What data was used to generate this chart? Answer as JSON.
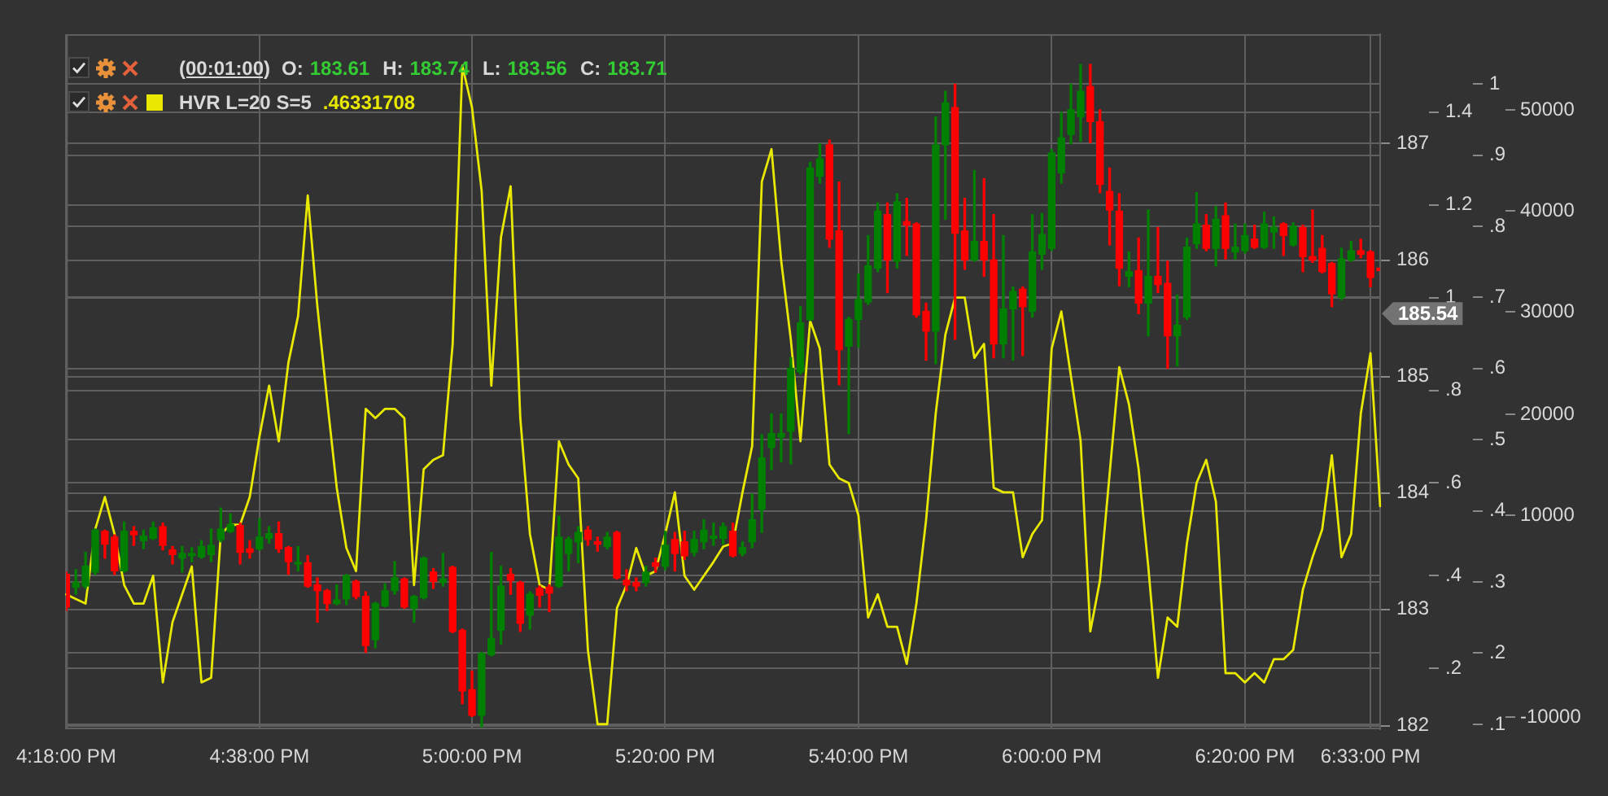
{
  "chart_data": {
    "type": "candlestick",
    "categories": [
      "4:18:00 PM",
      null,
      null,
      null,
      null,
      null,
      null,
      null,
      null,
      null,
      null,
      null,
      null,
      null,
      null,
      null,
      null,
      null,
      null,
      null,
      "4:38:00 PM",
      null,
      null,
      null,
      null,
      null,
      null,
      null,
      null,
      null,
      null,
      null,
      null,
      null,
      null,
      null,
      null,
      null,
      null,
      null,
      null,
      null,
      "5:00:00 PM",
      null,
      null,
      null,
      null,
      null,
      null,
      null,
      null,
      null,
      null,
      null,
      null,
      null,
      null,
      null,
      null,
      null,
      null,
      null,
      "5:20:00 PM",
      null,
      null,
      null,
      null,
      null,
      null,
      null,
      null,
      null,
      null,
      null,
      null,
      null,
      null,
      null,
      null,
      null,
      null,
      null,
      "5:40:00 PM",
      null,
      null,
      null,
      null,
      null,
      null,
      null,
      null,
      null,
      null,
      null,
      null,
      null,
      null,
      null,
      null,
      null,
      null,
      null,
      "6:00:00 PM",
      null,
      null,
      null,
      null,
      null,
      null,
      null,
      null,
      null,
      null,
      null,
      null,
      null,
      null,
      null,
      null,
      null,
      null,
      null,
      "6:20:00 PM",
      null,
      null,
      null,
      null,
      null,
      null,
      null,
      null,
      null,
      null,
      null,
      null,
      "6:33:00 PM",
      null
    ],
    "series": [
      {
        "type": "candlestick",
        "ohlc": [
          [
            183.3,
            183.32,
            182.99,
            183.02
          ],
          [
            183.19,
            183.34,
            183.13,
            183.23
          ],
          [
            183.2,
            183.49,
            183.18,
            183.37
          ],
          [
            183.32,
            183.69,
            183.3,
            183.68
          ],
          [
            183.67,
            183.68,
            183.44,
            183.56
          ],
          [
            183.62,
            183.64,
            183.3,
            183.33
          ],
          [
            183.33,
            183.75,
            183.32,
            183.67
          ],
          [
            183.67,
            183.71,
            183.55,
            183.64
          ],
          [
            183.59,
            183.68,
            183.52,
            183.63
          ],
          [
            183.61,
            183.75,
            183.6,
            183.7
          ],
          [
            183.71,
            183.74,
            183.51,
            183.55
          ],
          [
            183.51,
            183.54,
            183.39,
            183.47
          ],
          [
            183.44,
            183.54,
            183.32,
            183.48
          ],
          [
            183.46,
            183.53,
            183.41,
            183.48
          ],
          [
            183.45,
            183.59,
            183.44,
            183.54
          ],
          [
            183.47,
            183.69,
            183.41,
            183.55
          ],
          [
            183.6,
            183.87,
            183.58,
            183.69
          ],
          [
            183.67,
            183.82,
            183.66,
            183.73
          ],
          [
            183.72,
            183.74,
            183.39,
            183.49
          ],
          [
            183.52,
            183.59,
            183.44,
            183.49
          ],
          [
            183.52,
            183.78,
            183.51,
            183.62
          ],
          [
            183.61,
            183.71,
            183.57,
            183.65
          ],
          [
            183.65,
            183.75,
            183.49,
            183.52
          ],
          [
            183.53,
            183.54,
            183.3,
            183.41
          ],
          [
            183.39,
            183.54,
            183.33,
            183.4
          ],
          [
            183.4,
            183.46,
            183.19,
            183.2
          ],
          [
            183.21,
            183.27,
            182.89,
            183.16
          ],
          [
            183.16,
            183.17,
            182.99,
            183.05
          ],
          [
            183.05,
            183.21,
            183.04,
            183.08
          ],
          [
            183.09,
            183.3,
            183.04,
            183.29
          ],
          [
            183.24,
            183.25,
            183.09,
            183.11
          ],
          [
            183.11,
            183.15,
            182.63,
            182.69
          ],
          [
            182.74,
            183.06,
            182.67,
            183.05
          ],
          [
            183.03,
            183.22,
            183.02,
            183.16
          ],
          [
            183.16,
            183.41,
            183.13,
            183.27
          ],
          [
            183.26,
            183.27,
            183.01,
            183.02
          ],
          [
            183.01,
            183.12,
            182.89,
            183.11
          ],
          [
            183.1,
            183.45,
            183.09,
            183.44
          ],
          [
            183.32,
            183.35,
            183.18,
            183.24
          ],
          [
            183.23,
            183.48,
            183.2,
            183.26
          ],
          [
            183.36,
            183.37,
            182.8,
            182.81
          ],
          [
            182.82,
            182.83,
            182.19,
            182.3
          ],
          [
            182.31,
            182.47,
            182.08,
            182.09
          ],
          [
            182.09,
            182.63,
            181.99,
            182.62
          ],
          [
            182.61,
            183.49,
            182.6,
            182.75
          ],
          [
            182.82,
            183.37,
            182.7,
            183.2
          ],
          [
            183.3,
            183.35,
            183.13,
            183.25
          ],
          [
            183.23,
            183.24,
            182.81,
            182.88
          ],
          [
            182.95,
            183.15,
            182.83,
            183.13
          ],
          [
            183.18,
            183.2,
            183.02,
            183.12
          ],
          [
            183.19,
            183.21,
            182.98,
            183.14
          ],
          [
            183.2,
            183.8,
            183.19,
            183.62
          ],
          [
            183.48,
            183.62,
            183.33,
            183.6
          ],
          [
            183.58,
            183.71,
            183.4,
            183.66
          ],
          [
            183.68,
            183.71,
            183.55,
            183.6
          ],
          [
            183.58,
            183.62,
            183.5,
            183.56
          ],
          [
            183.54,
            183.66,
            183.52,
            183.62
          ],
          [
            183.66,
            183.67,
            183.26,
            183.27
          ],
          [
            183.25,
            183.34,
            183.16,
            183.21
          ],
          [
            183.23,
            183.27,
            183.16,
            183.2
          ],
          [
            183.23,
            183.37,
            183.2,
            183.32
          ],
          [
            183.4,
            183.44,
            183.32,
            183.37
          ],
          [
            183.37,
            183.67,
            183.34,
            183.55
          ],
          [
            183.6,
            183.66,
            183.33,
            183.48
          ],
          [
            183.58,
            183.67,
            183.43,
            183.46
          ],
          [
            183.49,
            183.67,
            183.46,
            183.6
          ],
          [
            183.58,
            183.77,
            183.52,
            183.68
          ],
          [
            183.61,
            183.74,
            183.55,
            183.63
          ],
          [
            183.61,
            183.74,
            183.56,
            183.71
          ],
          [
            183.67,
            183.74,
            183.45,
            183.46
          ],
          [
            183.48,
            183.58,
            183.46,
            183.53
          ],
          [
            183.58,
            183.99,
            183.53,
            183.77
          ],
          [
            183.86,
            184.5,
            183.66,
            184.3
          ],
          [
            184.39,
            184.68,
            184.2,
            184.51
          ],
          [
            184.48,
            184.68,
            184.27,
            184.51
          ],
          [
            184.53,
            185.16,
            184.25,
            185.07
          ],
          [
            185.04,
            185.6,
            185.02,
            185.46
          ],
          [
            185.49,
            186.84,
            185.48,
            186.79
          ],
          [
            186.72,
            187.0,
            186.66,
            186.87
          ],
          [
            186.99,
            187.03,
            186.11,
            186.18
          ],
          [
            186.25,
            186.67,
            184.93,
            185.23
          ],
          [
            185.26,
            185.51,
            184.51,
            185.49
          ],
          [
            185.49,
            185.88,
            185.25,
            185.66
          ],
          [
            185.64,
            186.21,
            185.62,
            185.95
          ],
          [
            185.93,
            186.49,
            185.9,
            186.42
          ],
          [
            186.39,
            186.49,
            185.72,
            186.0
          ],
          [
            185.99,
            186.57,
            185.93,
            186.5
          ],
          [
            186.33,
            186.53,
            186.04,
            186.3
          ],
          [
            186.31,
            186.32,
            185.51,
            185.53
          ],
          [
            185.56,
            185.63,
            185.14,
            185.39
          ],
          [
            185.39,
            187.23,
            185.11,
            186.99
          ],
          [
            186.99,
            187.45,
            186.35,
            187.35
          ],
          [
            187.31,
            187.51,
            185.32,
            186.23
          ],
          [
            186.25,
            186.53,
            185.92,
            186.0
          ],
          [
            186.0,
            186.77,
            185.99,
            186.16
          ],
          [
            186.16,
            186.7,
            185.86,
            186.0
          ],
          [
            186.0,
            186.39,
            185.16,
            185.28
          ],
          [
            185.28,
            186.21,
            185.16,
            185.58
          ],
          [
            185.58,
            185.77,
            185.14,
            185.73
          ],
          [
            185.75,
            185.77,
            185.18,
            185.6
          ],
          [
            185.56,
            186.39,
            185.51,
            186.07
          ],
          [
            186.05,
            186.4,
            185.92,
            186.22
          ],
          [
            186.1,
            186.95,
            186.08,
            186.92
          ],
          [
            186.75,
            187.27,
            186.66,
            187.05
          ],
          [
            187.08,
            187.51,
            187.0,
            187.29
          ],
          [
            187.23,
            187.68,
            187.02,
            187.45
          ],
          [
            187.49,
            187.68,
            187.01,
            187.19
          ],
          [
            187.19,
            187.29,
            186.58,
            186.65
          ],
          [
            186.59,
            186.79,
            186.13,
            186.43
          ],
          [
            186.42,
            186.57,
            185.78,
            185.93
          ],
          [
            185.86,
            186.07,
            185.77,
            185.9
          ],
          [
            185.91,
            186.19,
            185.54,
            185.63
          ],
          [
            185.63,
            186.43,
            185.35,
            185.86
          ],
          [
            185.86,
            186.28,
            185.72,
            185.79
          ],
          [
            185.8,
            185.99,
            185.07,
            185.35
          ],
          [
            185.35,
            185.7,
            185.09,
            185.44
          ],
          [
            185.51,
            186.19,
            185.49,
            186.11
          ],
          [
            186.14,
            186.58,
            186.1,
            186.31
          ],
          [
            186.3,
            186.39,
            186.08,
            186.1
          ],
          [
            186.1,
            186.46,
            185.95,
            186.35
          ],
          [
            186.38,
            186.49,
            186.01,
            186.1
          ],
          [
            186.07,
            186.31,
            186.01,
            186.11
          ],
          [
            186.08,
            186.31,
            186.06,
            186.21
          ],
          [
            186.18,
            186.3,
            186.1,
            186.11
          ],
          [
            186.11,
            186.41,
            186.1,
            186.31
          ],
          [
            186.24,
            186.37,
            186.1,
            186.28
          ],
          [
            186.31,
            186.32,
            186.04,
            186.21
          ],
          [
            186.13,
            186.32,
            186.12,
            186.29
          ],
          [
            186.28,
            186.3,
            185.9,
            186.03
          ],
          [
            186.03,
            186.43,
            185.98,
            186.0
          ],
          [
            186.1,
            186.21,
            185.89,
            185.9
          ],
          [
            185.97,
            185.98,
            185.6,
            185.71
          ],
          [
            185.68,
            186.1,
            185.66,
            186.01
          ],
          [
            186.0,
            186.16,
            185.99,
            186.08
          ],
          [
            186.08,
            186.18,
            186.02,
            186.05
          ],
          [
            186.07,
            186.08,
            185.77,
            185.85
          ],
          [
            185.93,
            185.93,
            185.91,
            185.91
          ]
        ],
        "colors": [
          "#ff0000",
          "#008000",
          "#008000",
          "#008000",
          "#ff0000",
          "#ff0000",
          "#008000",
          "#ff0000",
          "#008000",
          "#008000",
          "#ff0000",
          "#ff0000",
          "#008000",
          "#008000",
          "#008000",
          "#008000",
          "#008000",
          "#008000",
          "#ff0000",
          "#ff0000",
          "#008000",
          "#008000",
          "#ff0000",
          "#ff0000",
          "#008000",
          "#ff0000",
          "#ff0000",
          "#ff0000",
          "#008000",
          "#008000",
          "#ff0000",
          "#ff0000",
          "#008000",
          "#008000",
          "#008000",
          "#ff0000",
          "#008000",
          "#008000",
          "#ff0000",
          "#008000",
          "#ff0000",
          "#ff0000",
          "#ff0000",
          "#008000",
          "#008000",
          "#008000",
          "#ff0000",
          "#ff0000",
          "#008000",
          "#ff0000",
          "#ff0000",
          "#008000",
          "#008000",
          "#008000",
          "#ff0000",
          "#ff0000",
          "#008000",
          "#ff0000",
          "#ff0000",
          "#ff0000",
          "#008000",
          "#ff0000",
          "#008000",
          "#ff0000",
          "#ff0000",
          "#008000",
          "#008000",
          "#008000",
          "#008000",
          "#ff0000",
          "#008000",
          "#008000",
          "#008000",
          "#008000",
          "#008000",
          "#008000",
          "#008000",
          "#008000",
          "#008000",
          "#ff0000",
          "#ff0000",
          "#008000",
          "#008000",
          "#008000",
          "#008000",
          "#ff0000",
          "#008000",
          "#ff0000",
          "#ff0000",
          "#ff0000",
          "#008000",
          "#008000",
          "#ff0000",
          "#ff0000",
          "#008000",
          "#ff0000",
          "#ff0000",
          "#008000",
          "#008000",
          "#ff0000",
          "#008000",
          "#008000",
          "#008000",
          "#008000",
          "#008000",
          "#008000",
          "#ff0000",
          "#ff0000",
          "#ff0000",
          "#ff0000",
          "#008000",
          "#ff0000",
          "#008000",
          "#ff0000",
          "#ff0000",
          "#008000",
          "#008000",
          "#008000",
          "#ff0000",
          "#008000",
          "#ff0000",
          "#008000",
          "#008000",
          "#ff0000",
          "#008000",
          "#008000",
          "#ff0000",
          "#008000",
          "#ff0000",
          "#ff0000",
          "#ff0000",
          "#ff0000",
          "#008000",
          "#008000",
          "#ff0000",
          "#ff0000",
          "#ff0000"
        ]
      },
      {
        "name": "HVR L=20 S=5",
        "type": "line",
        "axis": "y2",
        "color": "#e8e800",
        "values": [
          0.36,
          0.35,
          0.34,
          0.5,
          0.57,
          0.49,
          0.38,
          0.34,
          0.34,
          0.4,
          0.17,
          0.3,
          0.36,
          0.42,
          0.17,
          0.18,
          0.49,
          0.51,
          0.51,
          0.57,
          0.7,
          0.81,
          0.69,
          0.86,
          0.96,
          1.22,
          0.98,
          0.78,
          0.59,
          0.46,
          0.41,
          0.76,
          0.74,
          0.76,
          0.76,
          0.74,
          0.38,
          0.63,
          0.65,
          0.66,
          0.9,
          1.5,
          1.41,
          1.23,
          0.81,
          1.13,
          1.24,
          0.74,
          0.49,
          0.38,
          0.37,
          0.69,
          0.64,
          0.61,
          0.24,
          0.08,
          0.08,
          0.33,
          0.38,
          0.46,
          0.4,
          0.41,
          0.49,
          0.58,
          0.4,
          0.37,
          0.4,
          0.43,
          0.463,
          0.47,
          0.58,
          0.68,
          1.25,
          1.32,
          1.08,
          0.91,
          0.69,
          0.95,
          0.89,
          0.64,
          0.61,
          0.6,
          0.53,
          0.31,
          0.36,
          0.29,
          0.29,
          0.21,
          0.34,
          0.52,
          0.75,
          0.92,
          1.0,
          1.0,
          0.87,
          0.9,
          0.59,
          0.58,
          0.58,
          0.44,
          0.49,
          0.52,
          0.89,
          0.97,
          0.83,
          0.69,
          0.28,
          0.39,
          0.62,
          0.85,
          0.77,
          0.63,
          0.42,
          0.18,
          0.31,
          0.29,
          0.47,
          0.6,
          0.65,
          0.56,
          0.19,
          0.19,
          0.17,
          0.19,
          0.17,
          0.22,
          0.22,
          0.24,
          0.37,
          0.44,
          0.5,
          0.66,
          0.44,
          0.49,
          0.75,
          0.88,
          0.55
        ]
      }
    ],
    "ylim": [
      181.97,
      187.94
    ],
    "yticks": [
      182,
      183,
      184,
      185,
      186,
      187
    ],
    "y2lim": [
      0.069,
      1.568
    ],
    "y2ticks": [
      {
        "value": 0.2,
        "label": ".2"
      },
      {
        "value": 0.4,
        "label": ".4"
      },
      {
        "value": 0.6,
        "label": ".6"
      },
      {
        "value": 0.8,
        "label": ".8"
      },
      1,
      1.2,
      1.4
    ],
    "y3lim": [
      0.093,
      1.07
    ],
    "y3ticks": [
      {
        "value": 0.1,
        "label": ".1"
      },
      {
        "value": 0.2,
        "label": ".2"
      },
      {
        "value": 0.3,
        "label": ".3"
      },
      {
        "value": 0.4,
        "label": ".4"
      },
      {
        "value": 0.5,
        "label": ".5"
      },
      {
        "value": 0.6,
        "label": ".6"
      },
      {
        "value": 0.7,
        "label": ".7"
      },
      {
        "value": 0.8,
        "label": ".8"
      },
      {
        "value": 0.9,
        "label": ".9"
      },
      1
    ],
    "grid": true,
    "legend": "top left",
    "annotations": [
      "(00:01:00)",
      "O: 183.61 H: 183.74 L: 183.56 C: 183.71",
      ".46331708",
      "185.54",
      "50000",
      "40000",
      "30000",
      "20000",
      "10000",
      "-10000"
    ]
  }
}
